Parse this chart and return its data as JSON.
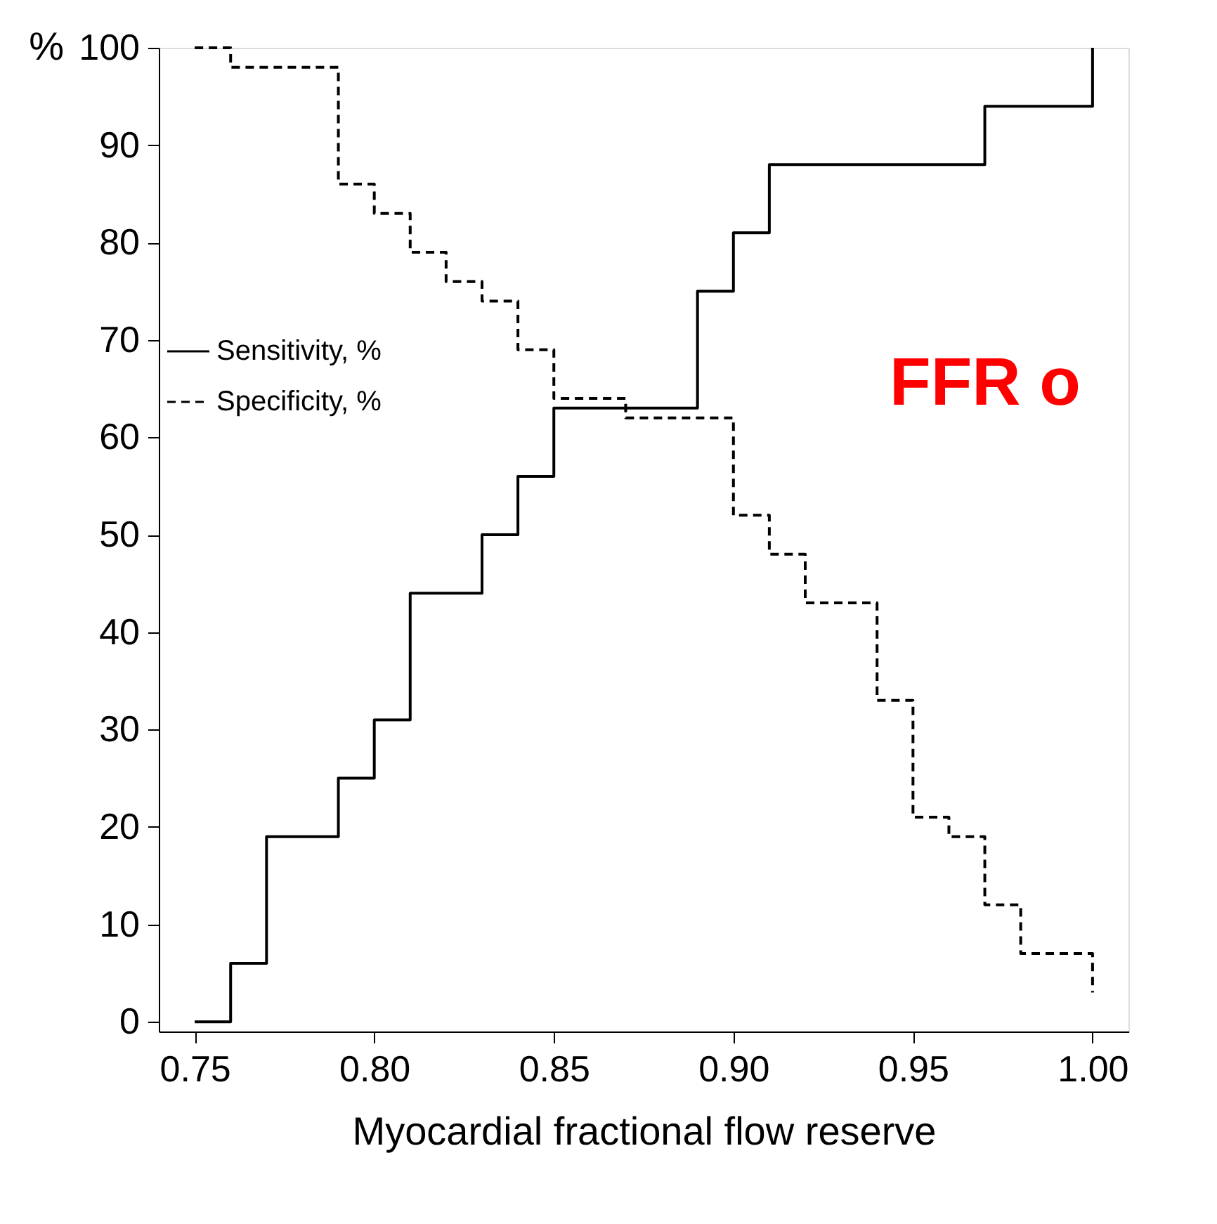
{
  "chart_data": {
    "type": "step",
    "xlabel": "Myocardial fractional flow reserve",
    "ylabel": "%",
    "x": [
      0.75,
      0.76,
      0.77,
      0.79,
      0.8,
      0.81,
      0.82,
      0.83,
      0.84,
      0.85,
      0.87,
      0.89,
      0.9,
      0.91,
      0.92,
      0.94,
      0.95,
      0.96,
      0.97,
      0.98,
      1.0
    ],
    "series": [
      {
        "name": "Sensitivity, %",
        "color": "#000000",
        "line_style": "solid",
        "values": [
          0,
          6,
          19,
          25,
          31,
          44,
          44,
          50,
          56,
          63,
          63,
          75,
          81,
          88,
          88,
          88,
          88,
          88,
          94,
          94,
          100
        ]
      },
      {
        "name": "Specificity, %",
        "color": "#000000",
        "line_style": "dashed",
        "values": [
          100,
          98,
          98,
          86,
          83,
          79,
          76,
          74,
          69,
          64,
          62,
          62,
          52,
          48,
          43,
          33,
          21,
          19,
          12,
          7,
          3
        ]
      }
    ],
    "xlim": [
      0.74,
      1.01
    ],
    "xticks": [
      {
        "value": 0.75,
        "label": "0.75"
      },
      {
        "value": 0.8,
        "label": "0.80"
      },
      {
        "value": 0.85,
        "label": "0.85"
      },
      {
        "value": 0.9,
        "label": "0.90"
      },
      {
        "value": 0.95,
        "label": "0.95"
      },
      {
        "value": 1.0,
        "label": "1.00"
      }
    ],
    "ylim": [
      -1,
      100
    ],
    "yticks": [
      0,
      10,
      20,
      30,
      40,
      50,
      60,
      70,
      80,
      90,
      100
    ],
    "grid": false,
    "legend": "left",
    "annotations": [
      "FFR o"
    ]
  }
}
